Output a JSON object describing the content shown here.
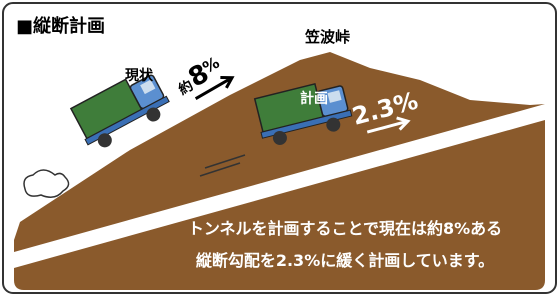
{
  "header": {
    "title": "■縦断計画"
  },
  "labels": {
    "pass": "笠波峠",
    "current": "現状",
    "current_grade": {
      "prefix": "約",
      "value": "8",
      "unit": "%"
    },
    "plan": "計画",
    "plan_grade": "2.3%"
  },
  "description": {
    "lines": [
      "トンネルを計画することで現在は約8%ある",
      "縦断勾配を2.3%に緩く計画しています。"
    ]
  }
}
